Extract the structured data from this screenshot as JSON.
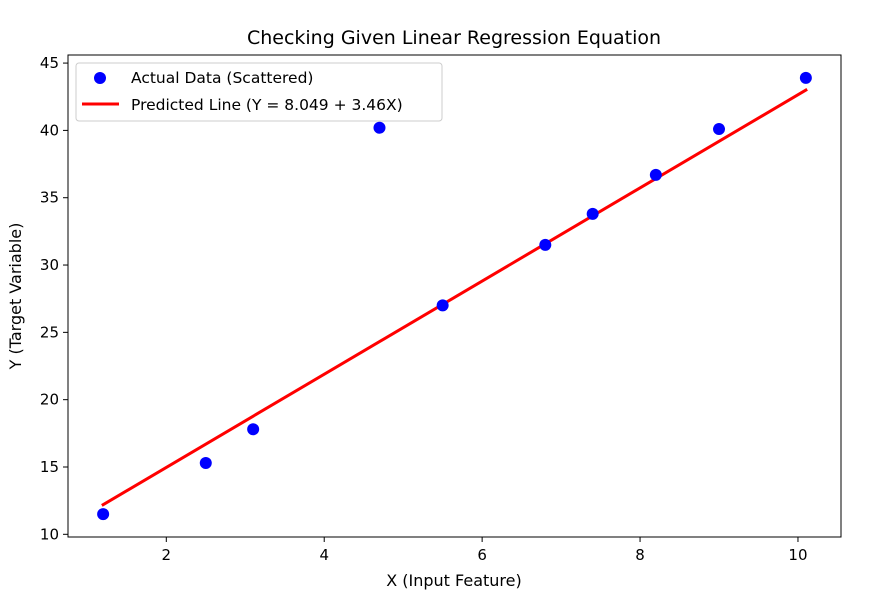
{
  "chart_data": {
    "type": "scatter",
    "title": "Checking Given Linear Regression Equation",
    "xlabel": "X (Input Feature)",
    "ylabel": "Y (Target Variable)",
    "xlim": [
      0.755,
      10.545
    ],
    "ylim": [
      9.8,
      45.6
    ],
    "xticks": [
      2,
      4,
      6,
      8,
      10
    ],
    "yticks": [
      10,
      15,
      20,
      25,
      30,
      35,
      40,
      45
    ],
    "grid": false,
    "legend_position": "top-left",
    "series": [
      {
        "name": "Actual Data (Scattered)",
        "kind": "scatter",
        "color": "#0000ff",
        "x": [
          1.2,
          2.5,
          3.1,
          4.7,
          5.5,
          6.8,
          7.4,
          8.2,
          9.0,
          10.1
        ],
        "y": [
          11.5,
          15.3,
          17.8,
          40.2,
          27.0,
          31.5,
          33.8,
          36.7,
          40.1,
          43.9
        ]
      },
      {
        "name": "Predicted Line (Y = 8.049 + 3.46X)",
        "kind": "line",
        "color": "#ff0000",
        "intercept": 8.049,
        "slope": 3.46,
        "x": [
          1.2,
          10.1
        ],
        "y": [
          12.201,
          42.995
        ]
      }
    ]
  }
}
